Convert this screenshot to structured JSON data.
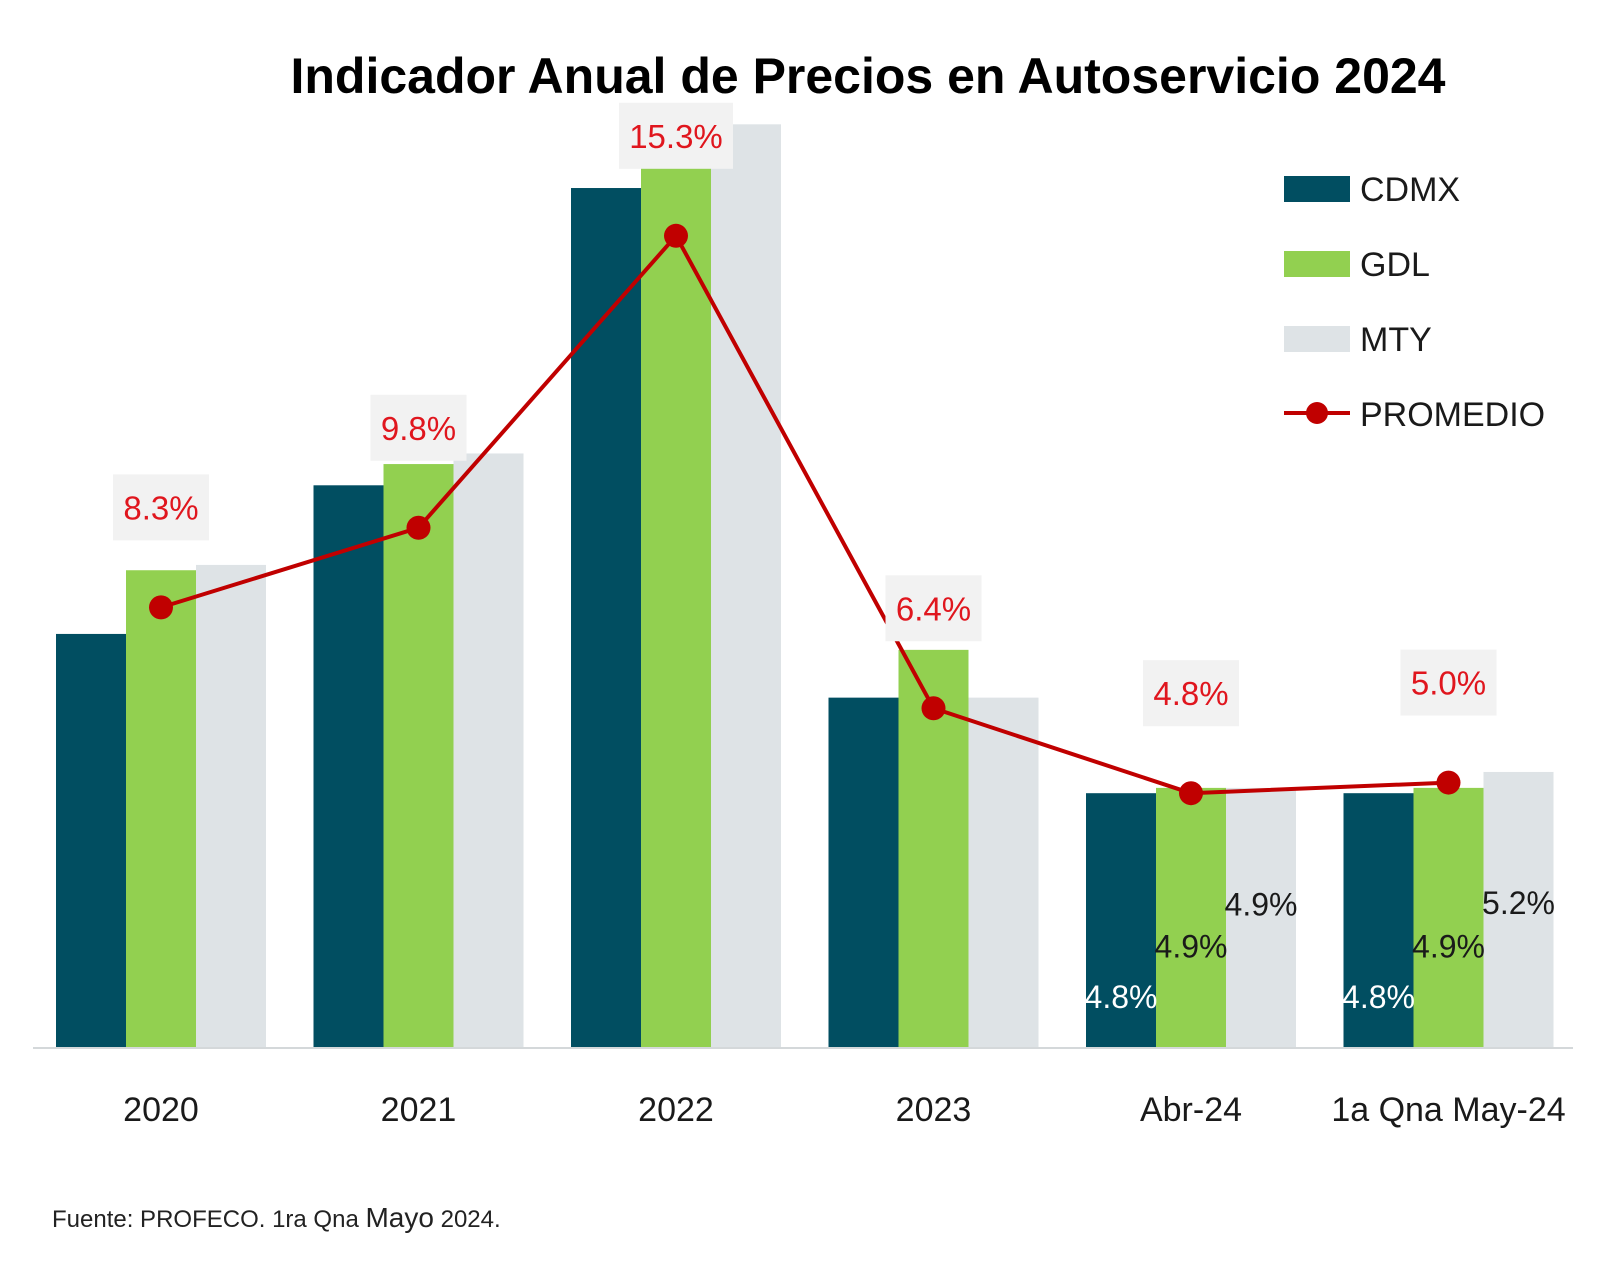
{
  "chart_data": {
    "type": "bar",
    "title": "Indicador Anual de Precios en Autoservicio 2024",
    "categories": [
      "2020",
      "2021",
      "2022",
      "2023",
      "Abr-24",
      "1a Qna May-24"
    ],
    "series": [
      {
        "name": "CDMX",
        "values": [
          7.8,
          10.6,
          16.2,
          6.6,
          4.8,
          4.8
        ],
        "color": "#014e61",
        "labels": [
          "",
          "",
          "",
          "",
          "4.8%",
          "4.8%"
        ],
        "label_color": "#ffffff"
      },
      {
        "name": "GDL",
        "values": [
          9.0,
          11.0,
          16.7,
          7.5,
          4.9,
          4.9
        ],
        "color": "#92d050",
        "labels": [
          "",
          "",
          "",
          "",
          "4.9%",
          "4.9%"
        ],
        "label_color": "#1a1a1a"
      },
      {
        "name": "MTY",
        "values": [
          9.1,
          11.2,
          17.4,
          6.6,
          4.9,
          5.2
        ],
        "color": "#dee3e6",
        "labels": [
          "",
          "",
          "",
          "",
          "4.9%",
          "5.2%"
        ],
        "label_color": "#1a1a1a"
      }
    ],
    "line_series": {
      "name": "PROMEDIO",
      "values": [
        8.3,
        9.8,
        15.3,
        6.4,
        4.8,
        5.0
      ],
      "labels": [
        "8.3%",
        "9.8%",
        "15.3%",
        "6.4%",
        "4.8%",
        "5.0%"
      ],
      "color": "#c00000",
      "label_color": "#e0161e"
    },
    "ylim": [
      0,
      18.8
    ],
    "grid": false,
    "legend_position": "top-right"
  },
  "footer": {
    "source_prefix": "Fuente: PROFECO. 1ra Qna ",
    "source_month": "Mayo",
    "source_suffix": " 2024."
  }
}
